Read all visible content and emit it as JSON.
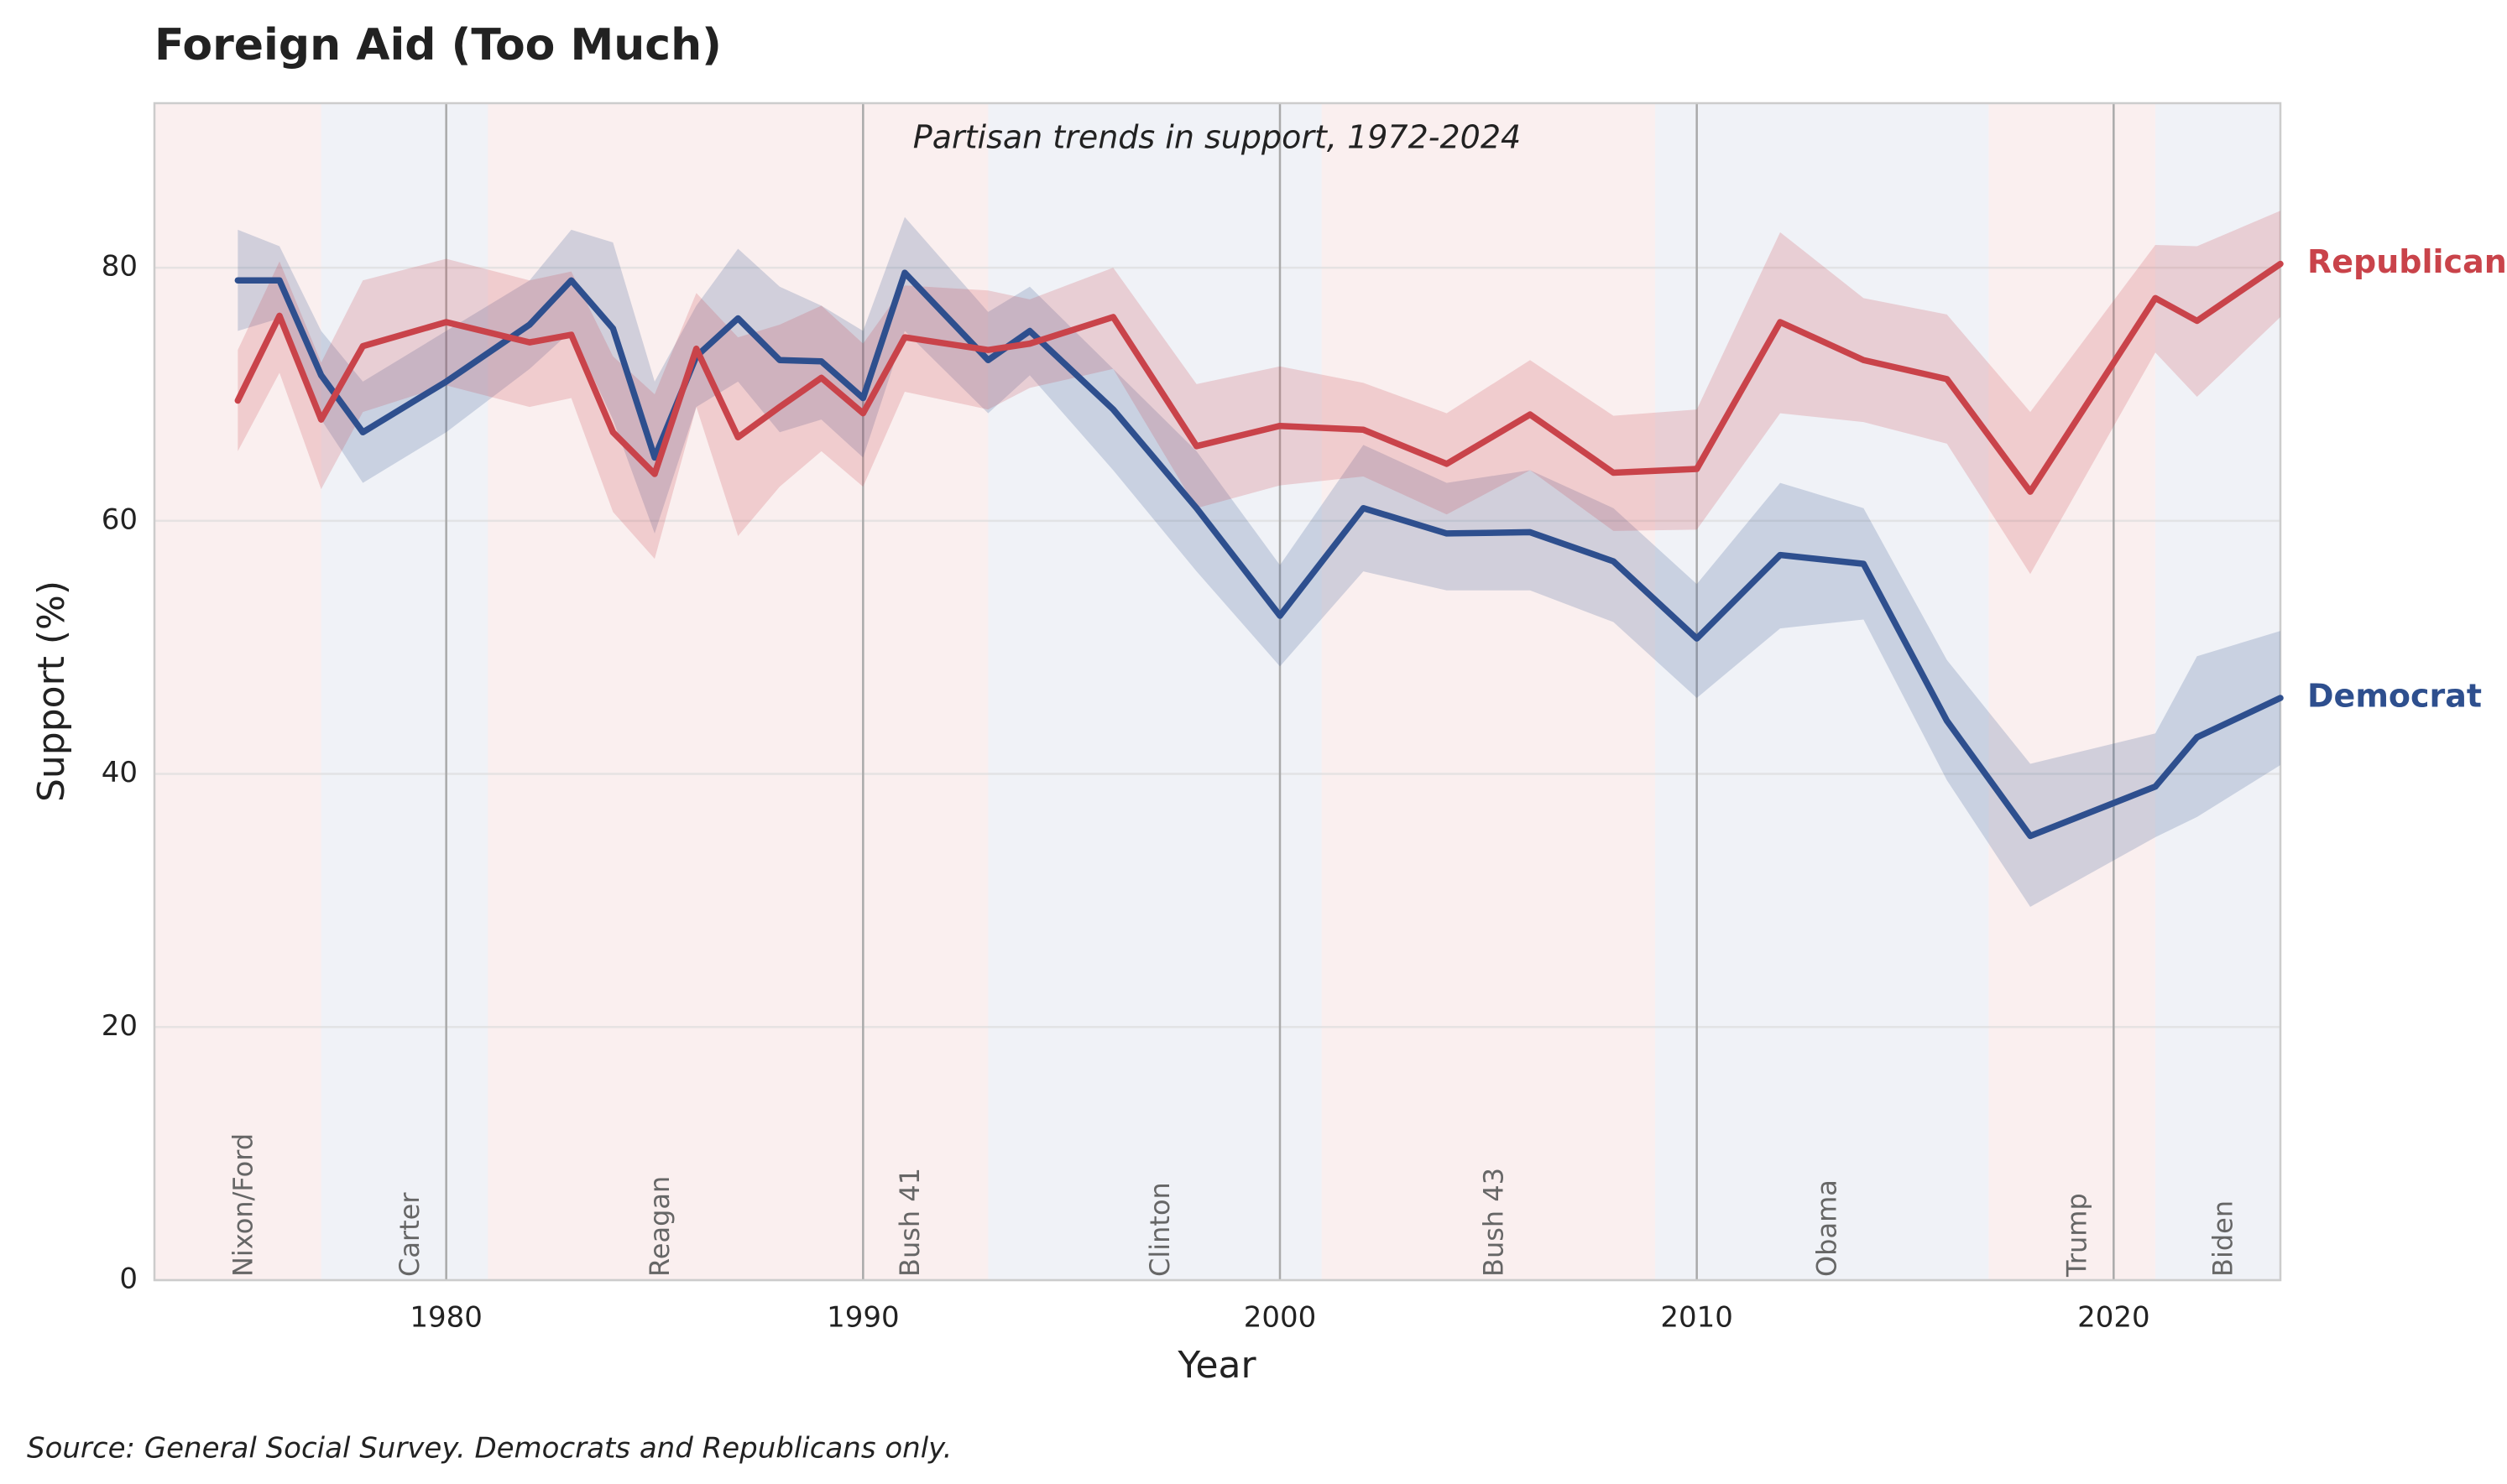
{
  "chart_data": {
    "type": "line",
    "title": "Foreign Aid (Too Much)",
    "subtitle": "Partisan trends in support, 1972-2024",
    "x_label": "Year",
    "y_label": "Support (%)",
    "source": "Source: General Social Survey. Democrats and Republicans only.",
    "x": [
      1975,
      1976,
      1977,
      1978,
      1980,
      1982,
      1983,
      1984,
      1985,
      1986,
      1987,
      1988,
      1989,
      1990,
      1991,
      1993,
      1994,
      1996,
      1998,
      2000,
      2002,
      2004,
      2006,
      2008,
      2010,
      2012,
      2014,
      2016,
      2018,
      2021,
      2022,
      2024
    ],
    "series": [
      {
        "name": "Democrat",
        "color": "#2e4f8e",
        "values": [
          79,
          79,
          71.5,
          67,
          71,
          75.5,
          79,
          75.2,
          65,
          73,
          76,
          72.7,
          72.6,
          69.7,
          79.6,
          72.7,
          75,
          68.8,
          61,
          52.5,
          61,
          59,
          59.1,
          56.8,
          50.7,
          57.3,
          56.6,
          44.2,
          35.1,
          39,
          42.9,
          46
        ],
        "upper": [
          83,
          81.7,
          75,
          71,
          75,
          79,
          83,
          82,
          71,
          77,
          81.5,
          78.5,
          77,
          75,
          84,
          76.5,
          78.5,
          72,
          65.5,
          56.5,
          66,
          63,
          64,
          61,
          55,
          63,
          61,
          49,
          40.8,
          43.2,
          49.3,
          51.3
        ],
        "lower": [
          75,
          76,
          68,
          63,
          67,
          72,
          75,
          68,
          59,
          69,
          71,
          67,
          68,
          65,
          75,
          68.5,
          71.5,
          64,
          56,
          48.5,
          56,
          54.5,
          54.5,
          52,
          46,
          51.5,
          52.2,
          39.5,
          29.5,
          35,
          36.6,
          40.7
        ]
      },
      {
        "name": "Republican",
        "color": "#c9434a",
        "values": [
          69.5,
          76.2,
          68,
          73.8,
          75.7,
          74.1,
          74.7,
          67,
          63.7,
          73.6,
          66.6,
          69,
          71.3,
          68.5,
          74.5,
          73.5,
          74,
          76.1,
          65.9,
          67.5,
          67.2,
          64.5,
          68.4,
          63.8,
          64.1,
          75.7,
          72.7,
          71.2,
          62.3,
          77.6,
          75.8,
          80.3
        ],
        "upper": [
          73.5,
          80.5,
          72.5,
          79,
          80.7,
          79,
          79.7,
          73,
          70,
          78,
          74.5,
          75.5,
          77,
          74,
          78.6,
          78.2,
          77.5,
          80,
          70.8,
          72.2,
          70.9,
          68.5,
          72.7,
          68.3,
          68.8,
          82.8,
          77.6,
          76.3,
          68.6,
          81.8,
          81.7,
          84.5
        ],
        "lower": [
          65.5,
          71.7,
          62.5,
          68.6,
          70.7,
          69,
          69.7,
          60.7,
          57,
          69,
          58.8,
          62.7,
          65.5,
          62.7,
          70.2,
          68.8,
          70.5,
          72,
          61,
          62.8,
          63.5,
          60.5,
          64,
          59.2,
          59.3,
          68.5,
          67.8,
          66.1,
          55.8,
          73.3,
          69.8,
          76.1
        ]
      }
    ],
    "presidencies": [
      {
        "name": "Nixon/Ford",
        "start": 1969,
        "end": 1977,
        "color": "#e8b4b4"
      },
      {
        "name": "Carter",
        "start": 1977,
        "end": 1981,
        "color": "#b9c4da"
      },
      {
        "name": "Reagan",
        "start": 1981,
        "end": 1989,
        "color": "#e8b4b4"
      },
      {
        "name": "Bush 41",
        "start": 1989,
        "end": 1993,
        "color": "#e8b4b4"
      },
      {
        "name": "Clinton",
        "start": 1993,
        "end": 2001,
        "color": "#b9c4da"
      },
      {
        "name": "Bush 43",
        "start": 2001,
        "end": 2009,
        "color": "#e8b4b4"
      },
      {
        "name": "Obama",
        "start": 2009,
        "end": 2017,
        "color": "#b9c4da"
      },
      {
        "name": "Trump",
        "start": 2017,
        "end": 2021,
        "color": "#e8b4b4"
      },
      {
        "name": "Biden",
        "start": 2021,
        "end": 2025,
        "color": "#b9c4da"
      }
    ],
    "xlim": [
      1973,
      2024
    ],
    "ylim": [
      0,
      93
    ],
    "xticks": [
      1980,
      1990,
      2000,
      2010,
      2020
    ],
    "yticks": [
      0,
      20,
      40,
      60,
      80
    ],
    "grid": true
  }
}
